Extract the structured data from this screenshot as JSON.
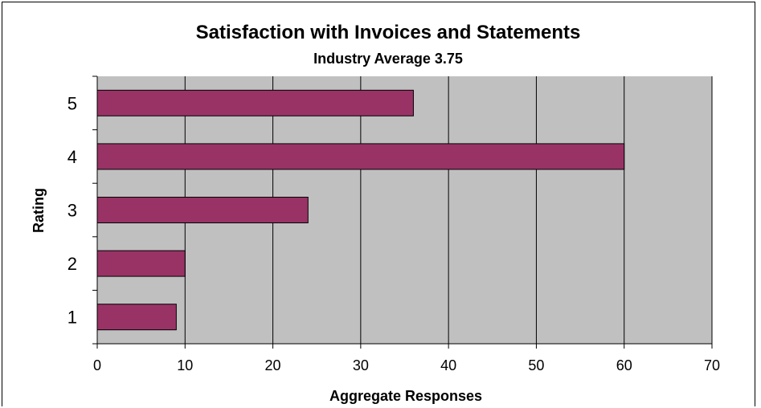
{
  "chart_data": {
    "type": "bar",
    "orientation": "horizontal",
    "title": "Satisfaction with Invoices and Statements",
    "subtitle": "Industry Average 3.75",
    "xlabel": "Aggregate Responses",
    "ylabel": "Rating",
    "xlim": [
      0,
      70
    ],
    "x_ticks": [
      "0",
      "10",
      "20",
      "30",
      "40",
      "50",
      "60",
      "70"
    ],
    "categories": [
      "1",
      "2",
      "3",
      "4",
      "5"
    ],
    "values": [
      9,
      10,
      24,
      60,
      36
    ],
    "grid": true,
    "legend": "none",
    "colors": {
      "bar": "#993366",
      "plot_background": "#c0c0c0",
      "gridline": "#000000"
    }
  }
}
